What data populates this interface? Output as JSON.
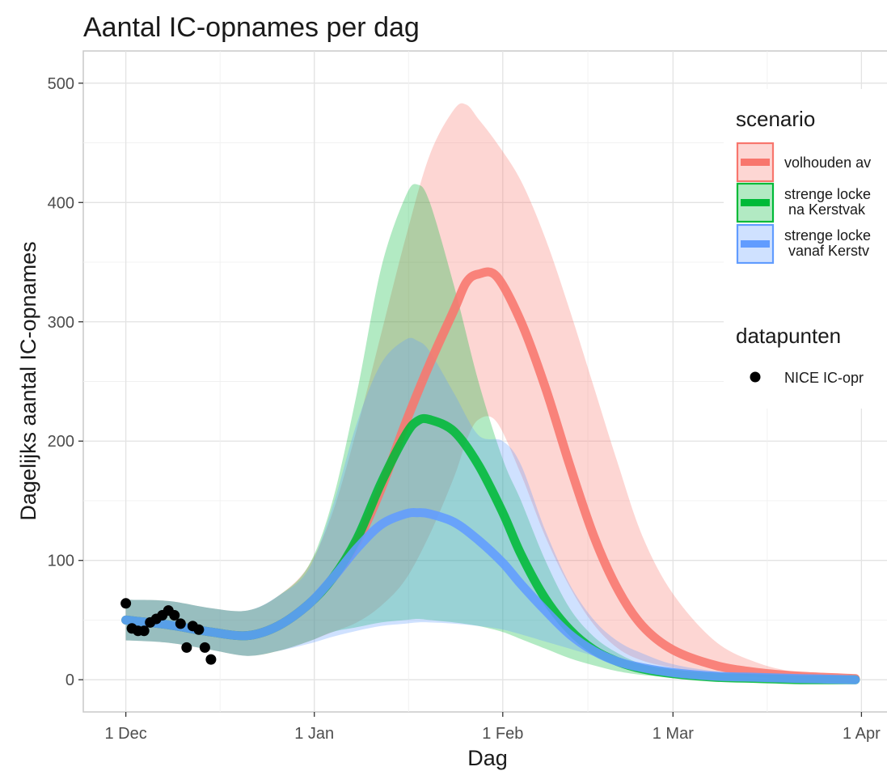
{
  "chart_data": {
    "type": "area",
    "title": "Aantal IC-opnames per dag",
    "xlabel": "Dag",
    "ylabel": "Dagelijks aantal IC-opnames",
    "x_ticks": [
      {
        "date": "2020-12-01",
        "label": "1 Dec"
      },
      {
        "date": "2021-01-01",
        "label": "1 Jan"
      },
      {
        "date": "2021-02-01",
        "label": "1 Feb"
      },
      {
        "date": "2021-03-01",
        "label": "1 Mar"
      },
      {
        "date": "2021-04-01",
        "label": "1 Apr"
      }
    ],
    "y_ticks": [
      0,
      100,
      200,
      300,
      400,
      500
    ],
    "xlim": [
      "2020-11-24",
      "2021-04-06"
    ],
    "ylim": [
      -27,
      527
    ],
    "grid": true,
    "legend_placement": "right",
    "legends": [
      {
        "title": "scenario",
        "entries": [
          {
            "label": "volhouden av",
            "color": "#f8766d"
          },
          {
            "label": "strenge locke\n na Kerstvak",
            "color": "#00ba38"
          },
          {
            "label": "strenge locke\n vanaf Kerstv",
            "color": "#619cff"
          }
        ]
      },
      {
        "title": "datapunten",
        "entries": [
          {
            "label": "NICE IC-opr",
            "color": "#000000"
          }
        ]
      }
    ],
    "series": [
      {
        "color": "#f8766d",
        "x": [
          "2020-12-01",
          "2020-12-08",
          "2020-12-15",
          "2020-12-21",
          "2020-12-26",
          "2020-12-31",
          "2021-01-04",
          "2021-01-08",
          "2021-01-12",
          "2021-01-16",
          "2021-01-20",
          "2021-01-24",
          "2021-01-26",
          "2021-01-28",
          "2021-01-31",
          "2021-02-04",
          "2021-02-08",
          "2021-02-12",
          "2021-02-16",
          "2021-02-20",
          "2021-02-24",
          "2021-03-01",
          "2021-03-08",
          "2021-03-15",
          "2021-03-22",
          "2021-03-31"
        ],
        "y": [
          50,
          46,
          40,
          37,
          45,
          63,
          85,
          115,
          160,
          215,
          265,
          310,
          333,
          340,
          338,
          300,
          245,
          180,
          120,
          75,
          45,
          25,
          12,
          6,
          3,
          1
        ],
        "lower": [
          33,
          31,
          25,
          20,
          24,
          32,
          40,
          48,
          62,
          84,
          122,
          170,
          200,
          218,
          216,
          172,
          120,
          78,
          46,
          26,
          16,
          10,
          4,
          2,
          1,
          0
        ],
        "upper": [
          67,
          66,
          60,
          58,
          70,
          95,
          140,
          210,
          290,
          370,
          440,
          478,
          482,
          470,
          450,
          418,
          370,
          310,
          245,
          180,
          120,
          72,
          32,
          14,
          6,
          3
        ]
      },
      {
        "color": "#00ba38",
        "x": [
          "2020-12-01",
          "2020-12-08",
          "2020-12-15",
          "2020-12-21",
          "2020-12-26",
          "2020-12-31",
          "2021-01-04",
          "2021-01-08",
          "2021-01-12",
          "2021-01-16",
          "2021-01-18",
          "2021-01-20",
          "2021-01-24",
          "2021-01-28",
          "2021-02-01",
          "2021-02-04",
          "2021-02-08",
          "2021-02-12",
          "2021-02-16",
          "2021-02-20",
          "2021-02-24",
          "2021-03-01",
          "2021-03-08",
          "2021-03-15",
          "2021-03-22",
          "2021-03-31"
        ],
        "y": [
          50,
          46,
          40,
          37,
          45,
          63,
          85,
          118,
          165,
          205,
          217,
          218,
          208,
          180,
          140,
          105,
          68,
          42,
          25,
          15,
          9,
          5,
          2,
          1,
          0,
          0
        ],
        "lower": [
          33,
          31,
          25,
          20,
          24,
          32,
          40,
          44,
          48,
          50,
          51,
          50,
          48,
          45,
          40,
          34,
          26,
          18,
          12,
          7,
          4,
          2,
          1,
          0,
          0,
          0
        ],
        "upper": [
          67,
          66,
          60,
          58,
          70,
          95,
          150,
          240,
          345,
          405,
          415,
          400,
          330,
          250,
          185,
          150,
          100,
          60,
          36,
          22,
          13,
          7,
          3,
          1,
          1,
          0
        ]
      },
      {
        "color": "#619cff",
        "x": [
          "2020-12-01",
          "2020-12-08",
          "2020-12-15",
          "2020-12-21",
          "2020-12-26",
          "2020-12-31",
          "2021-01-04",
          "2021-01-08",
          "2021-01-12",
          "2021-01-16",
          "2021-01-18",
          "2021-01-20",
          "2021-01-24",
          "2021-01-28",
          "2021-02-01",
          "2021-02-04",
          "2021-02-08",
          "2021-02-12",
          "2021-02-16",
          "2021-02-20",
          "2021-02-24",
          "2021-03-01",
          "2021-03-08",
          "2021-03-15",
          "2021-03-22",
          "2021-03-31"
        ],
        "y": [
          50,
          46,
          40,
          37,
          45,
          63,
          85,
          110,
          130,
          139,
          140,
          139,
          132,
          117,
          98,
          80,
          58,
          38,
          24,
          15,
          10,
          6,
          3,
          2,
          1,
          0
        ],
        "lower": [
          33,
          31,
          25,
          20,
          24,
          30,
          36,
          41,
          45,
          47,
          48,
          48,
          47,
          45,
          42,
          38,
          32,
          26,
          20,
          14,
          10,
          6,
          3,
          2,
          1,
          0
        ],
        "upper": [
          67,
          66,
          60,
          58,
          70,
          92,
          145,
          215,
          265,
          285,
          284,
          275,
          240,
          205,
          200,
          180,
          125,
          80,
          50,
          32,
          22,
          13,
          7,
          4,
          2,
          1
        ]
      }
    ],
    "points": {
      "x": [
        "2020-12-01",
        "2020-12-02",
        "2020-12-03",
        "2020-12-04",
        "2020-12-05",
        "2020-12-06",
        "2020-12-07",
        "2020-12-08",
        "2020-12-09",
        "2020-12-10",
        "2020-12-11",
        "2020-12-12",
        "2020-12-13",
        "2020-12-14",
        "2020-12-15"
      ],
      "y": [
        64,
        43,
        41,
        41,
        48,
        51,
        54,
        58,
        54,
        47,
        27,
        45,
        42,
        27,
        17
      ]
    }
  }
}
